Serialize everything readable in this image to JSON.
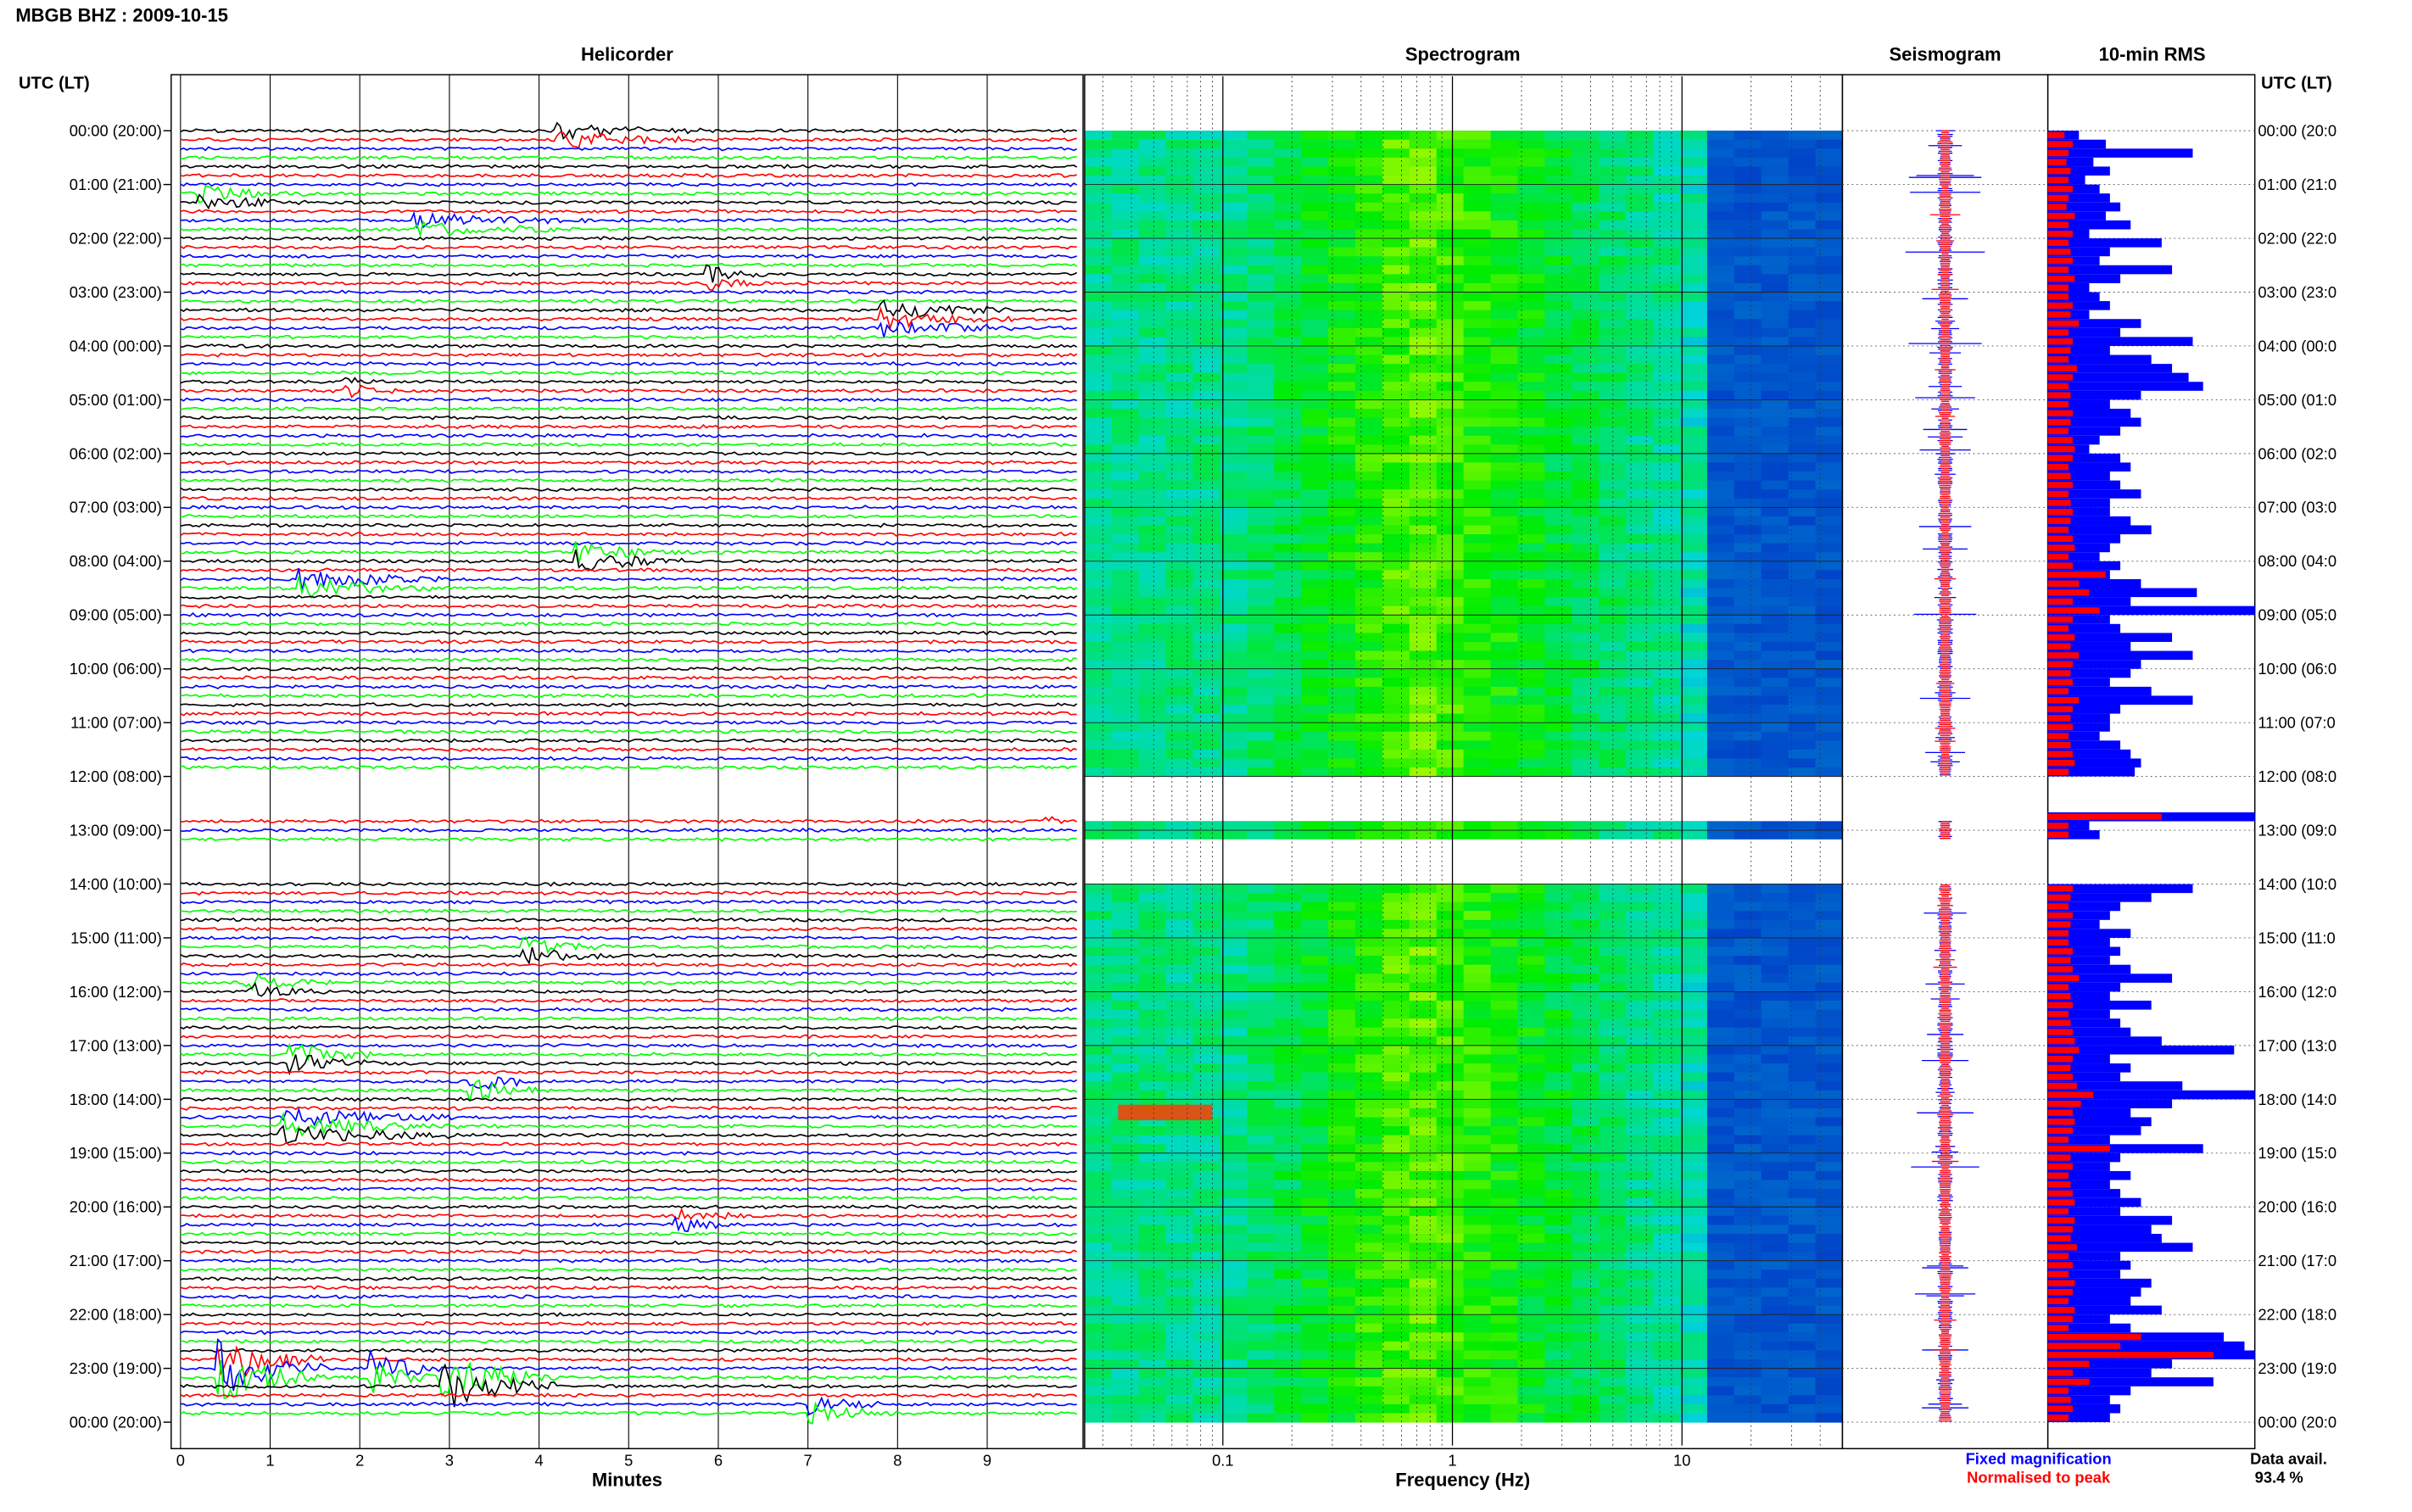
{
  "title": "MBGB BHZ : 2009-10-15",
  "panel_titles": {
    "helicorder": "Helicorder",
    "spectrogram": "Spectrogram",
    "seismogram": "Seismogram",
    "rms": "10-min RMS"
  },
  "utc_header": "UTC (LT)",
  "footer": {
    "legend_blue": "Fixed magnification",
    "legend_red": "Normalised to peak",
    "data_avail_label": "Data avail.",
    "data_avail_value": "93.4 %"
  },
  "colors": {
    "trace": [
      "#000000",
      "#ff0000",
      "#0000ff",
      "#00ff00"
    ],
    "rms_fixed": "#0000ff",
    "rms_normalised": "#ff0000",
    "spectrogram_low": "#00008b",
    "spectrogram_high": "#ff3c00"
  },
  "chart_data": [
    {
      "type": "line",
      "name": "Helicorder",
      "xlabel": "Minutes",
      "xlim": [
        0,
        10
      ],
      "x_ticks": [
        "0",
        "1",
        "2",
        "3",
        "4",
        "5",
        "6",
        "7",
        "8",
        "9"
      ],
      "rows_per_hour": 6,
      "hour_labels": [
        "00:00 (20:00)",
        "01:00 (21:00)",
        "02:00 (22:00)",
        "03:00 (23:00)",
        "04:00 (00:00)",
        "05:00 (01:00)",
        "06:00 (02:00)",
        "07:00 (03:00)",
        "08:00 (04:00)",
        "09:00 (05:00)",
        "10:00 (06:00)",
        "11:00 (07:00)",
        "12:00 (08:00)",
        "13:00 (09:00)",
        "14:00 (10:00)",
        "15:00 (11:00)",
        "16:00 (12:00)",
        "17:00 (13:00)",
        "18:00 (14:00)",
        "19:00 (15:00)",
        "20:00 (16:00)",
        "21:00 (17:00)",
        "22:00 (18:00)",
        "23:00 (19:00)",
        "00:00 (20:00)"
      ],
      "right_labels": [
        "00:00 (20:0",
        "01:00 (21:0",
        "02:00 (22:0",
        "03:00 (23:0",
        "04:00 (00:0",
        "05:00 (01:0",
        "06:00 (02:0",
        "07:00 (03:0",
        "08:00 (04:0",
        "09:00 (05:0",
        "10:00 (06:0",
        "11:00 (07:0",
        "12:00 (08:0",
        "13:00 (09:0",
        "14:00 (10:0",
        "15:00 (11:0",
        "16:00 (12:0",
        "17:00 (13:0",
        "18:00 (14:0",
        "19:00 (15:0",
        "20:00 (16:0",
        "21:00 (17:0",
        "22:00 (18:0",
        "23:00 (19:0",
        "00:00 (20:0"
      ],
      "data_gaps_hours": [
        [
          12.0,
          12.83
        ],
        [
          13.17,
          14.0
        ]
      ],
      "events": [
        {
          "start_hour": 0.1,
          "minute": 4.2,
          "duration_min": 1.6,
          "amplitude": 0.45
        },
        {
          "start_hour": 1.3,
          "minute": 0.2,
          "duration_min": 1.2,
          "amplitude": 0.4
        },
        {
          "start_hour": 1.8,
          "minute": 2.6,
          "duration_min": 2.0,
          "amplitude": 0.35
        },
        {
          "start_hour": 2.8,
          "minute": 5.8,
          "duration_min": 0.8,
          "amplitude": 0.5
        },
        {
          "start_hour": 3.5,
          "minute": 7.8,
          "duration_min": 1.5,
          "amplitude": 0.5
        },
        {
          "start_hour": 4.8,
          "minute": 1.8,
          "duration_min": 0.6,
          "amplitude": 0.4
        },
        {
          "start_hour": 7.9,
          "minute": 4.4,
          "duration_min": 1.2,
          "amplitude": 0.55
        },
        {
          "start_hour": 8.4,
          "minute": 1.3,
          "duration_min": 1.6,
          "amplitude": 0.6
        },
        {
          "start_hour": 12.7,
          "minute": 9.6,
          "duration_min": 0.3,
          "amplitude": 0.35
        },
        {
          "start_hour": 15.3,
          "minute": 3.8,
          "duration_min": 1.0,
          "amplitude": 0.55
        },
        {
          "start_hour": 15.9,
          "minute": 0.7,
          "duration_min": 1.0,
          "amplitude": 0.5
        },
        {
          "start_hour": 17.2,
          "minute": 1.2,
          "duration_min": 1.0,
          "amplitude": 0.6
        },
        {
          "start_hour": 17.8,
          "minute": 3.2,
          "duration_min": 0.8,
          "amplitude": 0.65
        },
        {
          "start_hour": 18.5,
          "minute": 1.1,
          "duration_min": 2.0,
          "amplitude": 0.55
        },
        {
          "start_hour": 20.3,
          "minute": 5.5,
          "duration_min": 0.8,
          "amplitude": 0.4
        },
        {
          "start_hour": 23.0,
          "minute": 0.4,
          "duration_min": 1.2,
          "amplitude": 1.5
        },
        {
          "start_hour": 23.1,
          "minute": 2.1,
          "duration_min": 0.8,
          "amplitude": 1.0
        },
        {
          "start_hour": 23.2,
          "minute": 2.9,
          "duration_min": 1.3,
          "amplitude": 1.3
        },
        {
          "start_hour": 23.8,
          "minute": 7.0,
          "duration_min": 1.0,
          "amplitude": 0.5
        }
      ]
    },
    {
      "type": "heatmap",
      "name": "Spectrogram",
      "xlabel": "Frequency (Hz)",
      "x_scale": "log",
      "xlim": [
        0.025,
        50
      ],
      "x_ticks": [
        "0.1",
        "1",
        "10"
      ],
      "data_gaps_hours": [
        [
          12.0,
          12.83
        ],
        [
          13.17,
          14.0
        ]
      ]
    },
    {
      "type": "line",
      "name": "Seismogram",
      "series": [
        {
          "name": "Fixed magnification",
          "color": "#0000ff"
        },
        {
          "name": "Normalised to peak",
          "color": "#ff0000"
        }
      ]
    },
    {
      "type": "bar",
      "name": "10-min RMS",
      "orientation": "horizontal",
      "bins_per_hour": 6,
      "xlim": [
        0,
        1
      ],
      "series": [
        {
          "name": "Fixed magnification",
          "color": "#0000ff",
          "values": [
            0.15,
            0.28,
            0.7,
            0.22,
            0.3,
            0.18,
            0.25,
            0.3,
            0.35,
            0.28,
            0.4,
            0.2,
            0.55,
            0.3,
            0.25,
            0.6,
            0.35,
            0.2,
            0.25,
            0.3,
            0.2,
            0.45,
            0.35,
            0.7,
            0.3,
            0.5,
            0.6,
            0.68,
            0.75,
            0.45,
            0.3,
            0.4,
            0.45,
            0.35,
            0.25,
            0.2,
            0.35,
            0.4,
            0.3,
            0.35,
            0.45,
            0.3,
            0.3,
            0.4,
            0.5,
            0.35,
            0.3,
            0.25,
            0.35,
            0.3,
            0.45,
            0.72,
            0.4,
            1.0,
            0.3,
            0.35,
            0.6,
            0.4,
            0.7,
            0.45,
            0.4,
            0.3,
            0.5,
            0.7,
            0.35,
            0.3,
            0.3,
            0.25,
            0.35,
            0.4,
            0.45,
            0.42,
            0.0,
            0.0,
            0.0,
            0.0,
            1.0,
            0.2,
            0.25,
            0.0,
            0.0,
            0.0,
            0.0,
            0.0,
            0.7,
            0.5,
            0.35,
            0.3,
            0.25,
            0.4,
            0.3,
            0.35,
            0.3,
            0.4,
            0.6,
            0.35,
            0.3,
            0.5,
            0.3,
            0.35,
            0.4,
            0.55,
            0.9,
            0.3,
            0.4,
            0.35,
            0.65,
            1.0,
            0.6,
            0.4,
            0.5,
            0.45,
            0.3,
            0.75,
            0.35,
            0.3,
            0.4,
            0.3,
            0.35,
            0.45,
            0.35,
            0.6,
            0.5,
            0.55,
            0.7,
            0.35,
            0.4,
            0.35,
            0.5,
            0.45,
            0.4,
            0.55,
            0.3,
            0.4,
            0.85,
            0.95,
            1.0,
            0.6,
            0.5,
            0.8,
            0.4,
            0.3,
            0.35,
            0.3
          ]
        },
        {
          "name": "Normalised to peak",
          "color": "#ff0000",
          "values": [
            0.08,
            0.12,
            0.1,
            0.09,
            0.11,
            0.1,
            0.12,
            0.1,
            0.09,
            0.13,
            0.1,
            0.12,
            0.1,
            0.11,
            0.12,
            0.1,
            0.13,
            0.1,
            0.1,
            0.12,
            0.11,
            0.15,
            0.1,
            0.12,
            0.11,
            0.1,
            0.14,
            0.12,
            0.1,
            0.11,
            0.1,
            0.12,
            0.11,
            0.1,
            0.12,
            0.13,
            0.12,
            0.1,
            0.11,
            0.12,
            0.1,
            0.11,
            0.12,
            0.11,
            0.1,
            0.12,
            0.13,
            0.1,
            0.12,
            0.28,
            0.15,
            0.2,
            0.12,
            0.25,
            0.12,
            0.1,
            0.13,
            0.11,
            0.15,
            0.12,
            0.11,
            0.12,
            0.1,
            0.15,
            0.12,
            0.11,
            0.12,
            0.1,
            0.11,
            0.12,
            0.13,
            0.1,
            0.0,
            0.0,
            0.0,
            0.0,
            0.55,
            0.1,
            0.1,
            0.0,
            0.0,
            0.0,
            0.0,
            0.0,
            0.12,
            0.11,
            0.1,
            0.12,
            0.11,
            0.1,
            0.1,
            0.12,
            0.11,
            0.12,
            0.15,
            0.1,
            0.11,
            0.12,
            0.1,
            0.11,
            0.12,
            0.13,
            0.15,
            0.12,
            0.11,
            0.12,
            0.14,
            0.22,
            0.16,
            0.12,
            0.13,
            0.12,
            0.1,
            0.3,
            0.11,
            0.12,
            0.1,
            0.11,
            0.12,
            0.13,
            0.1,
            0.13,
            0.12,
            0.11,
            0.14,
            0.1,
            0.12,
            0.1,
            0.13,
            0.12,
            0.1,
            0.13,
            0.12,
            0.1,
            0.45,
            0.35,
            0.8,
            0.2,
            0.12,
            0.2,
            0.1,
            0.11,
            0.12,
            0.1
          ]
        }
      ]
    }
  ]
}
